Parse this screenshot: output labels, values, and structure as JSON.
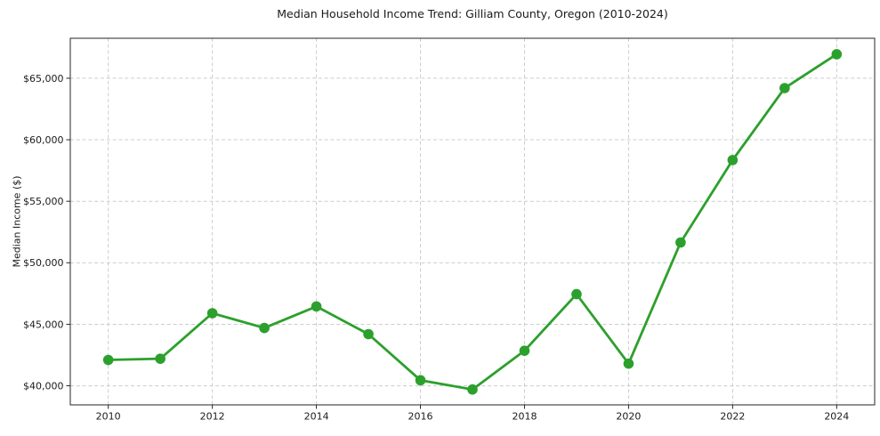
{
  "chart_data": {
    "type": "line",
    "title": "Median Household Income Trend: Gilliam County, Oregon (2010-2024)",
    "xlabel": "",
    "ylabel": "Median Income ($)",
    "series": [
      {
        "color": "#2ca02c",
        "marker": "circle",
        "x": [
          2010,
          2011,
          2012,
          2013,
          2014,
          2015,
          2016,
          2017,
          2018,
          2019,
          2020,
          2021,
          2022,
          2023,
          2024
        ],
        "values": [
          42100,
          42200,
          45900,
          44700,
          46450,
          44200,
          40450,
          39700,
          42850,
          47450,
          41800,
          51650,
          58350,
          64200,
          66950
        ]
      }
    ],
    "xticks": {
      "values": [
        2010,
        2012,
        2014,
        2016,
        2018,
        2020,
        2022,
        2024
      ],
      "labels": [
        "2010",
        "2012",
        "2014",
        "2016",
        "2018",
        "2020",
        "2022",
        "2024"
      ]
    },
    "yticks": {
      "values": [
        40000,
        45000,
        50000,
        55000,
        60000,
        65000
      ],
      "labels": [
        "$40,000",
        "$45,000",
        "$50,000",
        "$55,000",
        "$60,000",
        "$65,000"
      ]
    },
    "xlim": [
      2009.27,
      2024.73
    ],
    "ylim": [
      38450,
      68250
    ],
    "grid": true,
    "grid_color": "#cccccc",
    "axis_color": "#262626",
    "legend_position": "none"
  }
}
